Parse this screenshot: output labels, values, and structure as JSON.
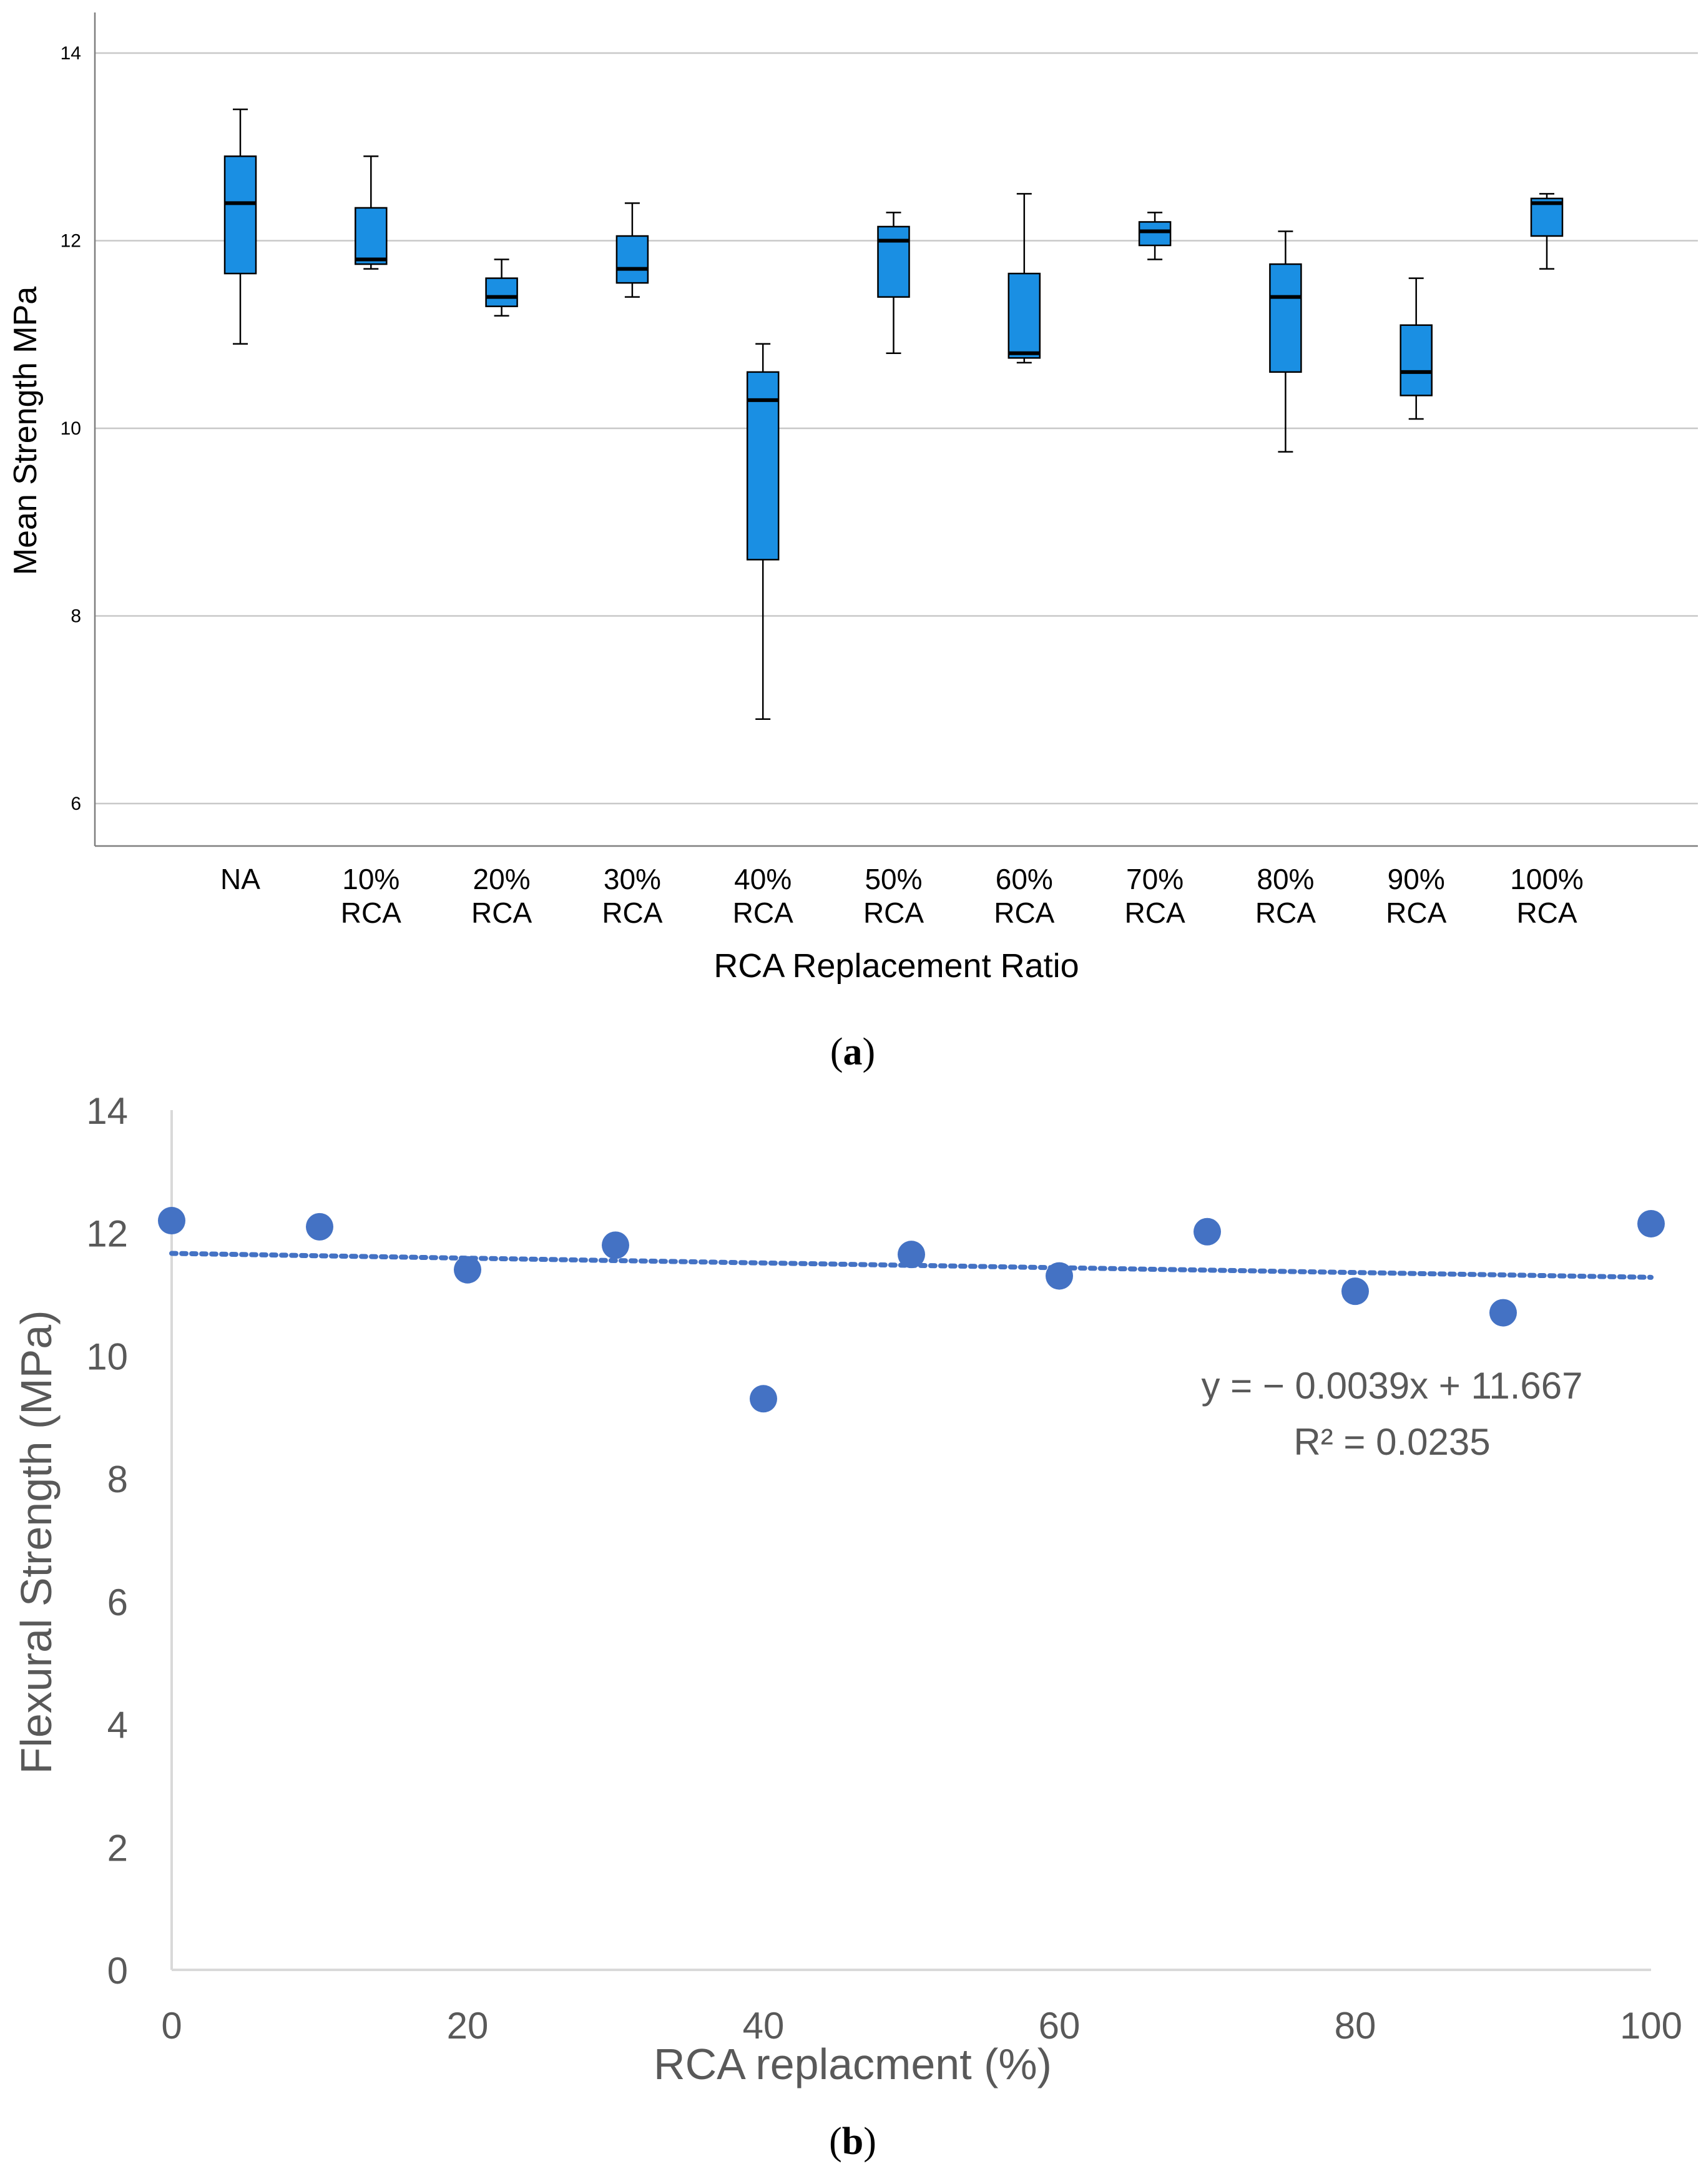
{
  "chart_data": [
    {
      "type": "boxplot",
      "panel_label": "a",
      "xlabel": "RCA Replacement Ratio",
      "ylabel": "Mean Strength MPa",
      "ylim": [
        5.6,
        14.5
      ],
      "yticks": [
        "6",
        "8",
        "10",
        "12",
        "14"
      ],
      "grid": true,
      "categories": [
        {
          "line1": "NA",
          "line2": ""
        },
        {
          "line1": "10%",
          "line2": "RCA"
        },
        {
          "line1": "20%",
          "line2": "RCA"
        },
        {
          "line1": "30%",
          "line2": "RCA"
        },
        {
          "line1": "40%",
          "line2": "RCA"
        },
        {
          "line1": "50%",
          "line2": "RCA"
        },
        {
          "line1": "60%",
          "line2": "RCA"
        },
        {
          "line1": "70%",
          "line2": "RCA"
        },
        {
          "line1": "80%",
          "line2": "RCA"
        },
        {
          "line1": "90%",
          "line2": "RCA"
        },
        {
          "line1": "100%",
          "line2": "RCA"
        }
      ],
      "boxes": [
        {
          "min": 10.9,
          "q1": 11.65,
          "median": 12.4,
          "q3": 12.9,
          "max": 13.4
        },
        {
          "min": 11.7,
          "q1": 11.75,
          "median": 11.8,
          "q3": 12.35,
          "max": 12.9
        },
        {
          "min": 11.2,
          "q1": 11.3,
          "median": 11.4,
          "q3": 11.6,
          "max": 11.8
        },
        {
          "min": 11.4,
          "q1": 11.55,
          "median": 11.7,
          "q3": 12.05,
          "max": 12.4
        },
        {
          "min": 6.9,
          "q1": 8.6,
          "median": 10.3,
          "q3": 10.6,
          "max": 10.9
        },
        {
          "min": 10.8,
          "q1": 11.4,
          "median": 12.0,
          "q3": 12.15,
          "max": 12.3
        },
        {
          "min": 10.7,
          "q1": 10.75,
          "median": 10.8,
          "q3": 11.65,
          "max": 12.5
        },
        {
          "min": 11.8,
          "q1": 11.95,
          "median": 12.1,
          "q3": 12.2,
          "max": 12.3
        },
        {
          "min": 9.75,
          "q1": 10.6,
          "median": 11.4,
          "q3": 11.75,
          "max": 12.1
        },
        {
          "min": 10.1,
          "q1": 10.35,
          "median": 10.6,
          "q3": 11.1,
          "max": 11.6
        },
        {
          "min": 11.7,
          "q1": 12.05,
          "median": 12.4,
          "q3": 12.45,
          "max": 12.5
        }
      ],
      "colors": {
        "box": "#1a8fe3",
        "edge": "#000000",
        "grid": "#c8c8c8",
        "axis": "#7f7f7f"
      }
    },
    {
      "type": "scatter",
      "panel_label": "b",
      "xlabel": "RCA replacment (%)",
      "ylabel": "Flexural Strength (MPa)",
      "xlim": [
        0,
        100
      ],
      "ylim": [
        0,
        14
      ],
      "xticks": [
        "0",
        "20",
        "40",
        "60",
        "80",
        "100"
      ],
      "yticks": [
        "0",
        "2",
        "4",
        "6",
        "8",
        "10",
        "12",
        "14"
      ],
      "grid": false,
      "series": [
        {
          "name": "Flexural Strength",
          "x": [
            0,
            10,
            20,
            30,
            40,
            50,
            60,
            70,
            80,
            90,
            100
          ],
          "y": [
            12.2,
            12.1,
            11.4,
            11.8,
            9.3,
            11.65,
            11.3,
            12.02,
            11.05,
            10.7,
            12.15
          ]
        }
      ],
      "trendline": {
        "type": "linear",
        "slope": -0.0039,
        "intercept": 11.667,
        "equation": "y = − 0.0039x + 11.667",
        "r_squared": "R² = 0.0235"
      },
      "colors": {
        "marker": "#4472c4",
        "trend": "#4472c4",
        "axis": "#d9d9d9",
        "text": "#595959"
      }
    }
  ]
}
